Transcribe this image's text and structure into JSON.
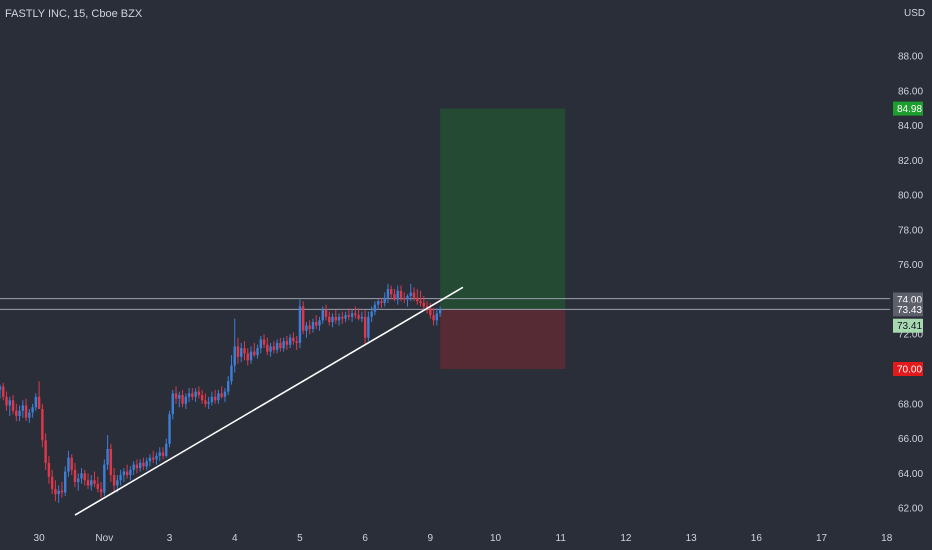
{
  "header": {
    "title": "FASTLY INC, 15, Cboe BZX",
    "currency": "USD"
  },
  "colors": {
    "background": "#2a2e39",
    "up_candle": "#3d7fd6",
    "down_candle": "#e0384a",
    "trendline": "#ffffff",
    "hline": "#9aa0ad",
    "target_zone": "#244a33",
    "stop_zone": "#562b33",
    "target_tag": "#1e9e2e",
    "stop_tag": "#e31a1c",
    "price_tag": "#a8d8b0",
    "level_tag": "#5d606b",
    "axis_text": "#d1d4dc"
  },
  "chart_data": {
    "type": "candlestick",
    "symbol": "FASTLY INC",
    "interval": "15",
    "exchange": "Cboe BZX",
    "currency": "USD",
    "x_ticks": [
      {
        "label": "30",
        "day": 0
      },
      {
        "label": "Nov",
        "day": 1
      },
      {
        "label": "3",
        "day": 2
      },
      {
        "label": "4",
        "day": 3
      },
      {
        "label": "5",
        "day": 4
      },
      {
        "label": "6",
        "day": 5
      },
      {
        "label": "9",
        "day": 6
      },
      {
        "label": "10",
        "day": 7
      },
      {
        "label": "11",
        "day": 8
      },
      {
        "label": "12",
        "day": 9
      },
      {
        "label": "13",
        "day": 10
      },
      {
        "label": "16",
        "day": 11
      },
      {
        "label": "17",
        "day": 12
      },
      {
        "label": "18",
        "day": 13
      }
    ],
    "y_ticks": [
      "62.00",
      "64.00",
      "66.00",
      "68.00",
      "70.00",
      "72.00",
      "74.00",
      "76.00",
      "78.00",
      "80.00",
      "82.00",
      "84.00",
      "86.00",
      "88.00"
    ],
    "ylim": [
      61.2,
      89.5
    ],
    "xlim": [
      -0.6,
      13.05
    ],
    "last_price": "73.41",
    "price_levels": [
      {
        "name": "target",
        "value": "84.98"
      },
      {
        "name": "entry",
        "value": "73.43"
      },
      {
        "name": "stop",
        "value": "70.00"
      },
      {
        "name": "resistance",
        "value": "74.00"
      }
    ],
    "horizontal_lines": [
      74.05,
      73.43
    ],
    "trendline": {
      "start": [
        0.55,
        61.6
      ],
      "end": [
        6.5,
        74.7
      ]
    },
    "long_position": {
      "day_start": 6.15,
      "day_end": 8.07,
      "entry": 73.43,
      "target": 84.98,
      "stop": 70.0
    },
    "candles": [
      [
        -0.6,
        68.8,
        69.1,
        68.3,
        69.0
      ],
      [
        -0.55,
        69.0,
        69.2,
        68.2,
        68.4
      ],
      [
        -0.5,
        68.4,
        68.7,
        67.6,
        67.9
      ],
      [
        -0.45,
        67.9,
        68.4,
        67.3,
        68.2
      ],
      [
        -0.4,
        68.2,
        68.5,
        67.4,
        67.6
      ],
      [
        -0.35,
        67.6,
        68.0,
        67.0,
        67.3
      ],
      [
        -0.3,
        67.3,
        67.9,
        67.0,
        67.6
      ],
      [
        -0.25,
        67.6,
        68.2,
        67.2,
        67.9
      ],
      [
        -0.2,
        67.9,
        68.3,
        67.0,
        67.2
      ],
      [
        -0.15,
        67.2,
        67.7,
        66.9,
        67.5
      ],
      [
        -0.1,
        67.5,
        68.0,
        67.2,
        67.8
      ],
      [
        -0.05,
        67.8,
        68.6,
        67.6,
        68.4
      ],
      [
        0.0,
        68.4,
        69.3,
        67.9,
        67.7
      ],
      [
        0.05,
        67.7,
        68.0,
        65.5,
        65.9
      ],
      [
        0.1,
        65.9,
        66.3,
        64.2,
        64.6
      ],
      [
        0.15,
        64.6,
        65.0,
        63.4,
        63.8
      ],
      [
        0.2,
        63.8,
        64.2,
        62.8,
        63.1
      ],
      [
        0.25,
        63.1,
        63.6,
        62.4,
        62.8
      ],
      [
        0.3,
        62.8,
        63.3,
        62.3,
        63.0
      ],
      [
        0.35,
        63.0,
        63.5,
        62.6,
        62.9
      ],
      [
        0.4,
        62.9,
        64.4,
        62.7,
        64.1
      ],
      [
        0.45,
        64.1,
        65.3,
        63.8,
        64.9
      ],
      [
        0.5,
        64.9,
        65.1,
        63.9,
        64.2
      ],
      [
        0.55,
        64.2,
        64.6,
        63.2,
        63.5
      ],
      [
        0.6,
        63.5,
        64.0,
        63.0,
        63.7
      ],
      [
        0.65,
        63.7,
        64.3,
        63.4,
        64.0
      ],
      [
        0.7,
        64.0,
        64.2,
        63.3,
        63.6
      ],
      [
        0.75,
        63.6,
        64.0,
        63.1,
        63.3
      ],
      [
        0.8,
        63.3,
        63.9,
        63.0,
        63.6
      ],
      [
        0.85,
        63.6,
        64.1,
        63.2,
        63.4
      ],
      [
        0.9,
        63.4,
        63.8,
        62.9,
        63.1
      ],
      [
        0.95,
        63.1,
        63.5,
        62.6,
        62.9
      ],
      [
        1.0,
        62.9,
        64.8,
        62.7,
        64.5
      ],
      [
        1.05,
        64.5,
        66.2,
        64.2,
        65.4
      ],
      [
        1.1,
        65.4,
        65.7,
        63.5,
        63.9
      ],
      [
        1.15,
        63.9,
        64.3,
        62.9,
        63.3
      ],
      [
        1.2,
        63.3,
        63.9,
        62.9,
        63.6
      ],
      [
        1.25,
        63.6,
        64.2,
        63.3,
        63.9
      ],
      [
        1.3,
        63.9,
        64.3,
        63.5,
        64.1
      ],
      [
        1.35,
        64.1,
        64.5,
        63.7,
        63.9
      ],
      [
        1.4,
        63.9,
        64.4,
        63.6,
        64.2
      ],
      [
        1.45,
        64.2,
        64.7,
        63.9,
        64.5
      ],
      [
        1.5,
        64.5,
        64.8,
        64.0,
        64.3
      ],
      [
        1.55,
        64.3,
        64.8,
        64.1,
        64.6
      ],
      [
        1.6,
        64.6,
        64.9,
        64.2,
        64.4
      ],
      [
        1.65,
        64.4,
        64.9,
        64.2,
        64.7
      ],
      [
        1.7,
        64.7,
        65.1,
        64.4,
        64.9
      ],
      [
        1.75,
        64.9,
        65.3,
        64.6,
        64.8
      ],
      [
        1.8,
        64.8,
        65.2,
        64.5,
        65.0
      ],
      [
        1.85,
        65.0,
        65.5,
        64.7,
        65.2
      ],
      [
        1.9,
        65.2,
        65.5,
        64.8,
        65.0
      ],
      [
        1.95,
        65.0,
        66.0,
        64.9,
        65.7
      ],
      [
        2.0,
        65.7,
        67.6,
        65.5,
        67.4
      ],
      [
        2.05,
        67.4,
        68.8,
        67.1,
        68.6
      ],
      [
        2.1,
        68.6,
        69.0,
        68.0,
        68.3
      ],
      [
        2.15,
        68.3,
        68.7,
        67.8,
        68.5
      ],
      [
        2.2,
        68.5,
        68.8,
        67.8,
        68.0
      ],
      [
        2.25,
        68.0,
        68.6,
        67.7,
        68.4
      ],
      [
        2.3,
        68.4,
        68.9,
        68.1,
        68.6
      ],
      [
        2.35,
        68.6,
        68.9,
        68.2,
        68.4
      ],
      [
        2.4,
        68.4,
        68.9,
        68.1,
        68.7
      ],
      [
        2.45,
        68.7,
        69.0,
        68.3,
        68.5
      ],
      [
        2.5,
        68.5,
        68.8,
        68.0,
        68.2
      ],
      [
        2.55,
        68.2,
        68.6,
        67.8,
        68.0
      ],
      [
        2.6,
        68.0,
        68.4,
        67.7,
        68.1
      ],
      [
        2.65,
        68.1,
        68.7,
        67.9,
        68.4
      ],
      [
        2.7,
        68.4,
        68.8,
        68.0,
        68.2
      ],
      [
        2.75,
        68.2,
        68.8,
        68.0,
        68.6
      ],
      [
        2.8,
        68.6,
        69.0,
        68.3,
        68.4
      ],
      [
        2.85,
        68.4,
        68.9,
        68.1,
        68.7
      ],
      [
        2.9,
        68.7,
        69.6,
        68.5,
        69.3
      ],
      [
        2.95,
        69.3,
        70.8,
        69.1,
        70.2
      ],
      [
        3.0,
        70.2,
        72.9,
        69.8,
        71.3
      ],
      [
        3.05,
        71.3,
        71.8,
        70.3,
        70.7
      ],
      [
        3.1,
        70.7,
        71.5,
        70.4,
        71.2
      ],
      [
        3.15,
        71.2,
        71.6,
        70.5,
        70.9
      ],
      [
        3.2,
        70.9,
        71.2,
        70.2,
        70.5
      ],
      [
        3.25,
        70.5,
        71.3,
        70.3,
        71.0
      ],
      [
        3.3,
        71.0,
        71.5,
        70.7,
        70.8
      ],
      [
        3.35,
        70.8,
        71.4,
        70.6,
        71.2
      ],
      [
        3.4,
        71.2,
        71.9,
        70.9,
        71.7
      ],
      [
        3.45,
        71.7,
        72.0,
        71.2,
        71.4
      ],
      [
        3.5,
        71.4,
        71.8,
        70.8,
        71.0
      ],
      [
        3.55,
        71.0,
        71.5,
        70.7,
        71.3
      ],
      [
        3.6,
        71.3,
        71.6,
        70.9,
        71.1
      ],
      [
        3.65,
        71.1,
        71.7,
        70.9,
        71.5
      ],
      [
        3.7,
        71.5,
        71.8,
        71.0,
        71.2
      ],
      [
        3.75,
        71.2,
        71.8,
        71.0,
        71.6
      ],
      [
        3.8,
        71.6,
        71.9,
        71.1,
        71.4
      ],
      [
        3.85,
        71.4,
        72.0,
        71.2,
        71.8
      ],
      [
        3.9,
        71.8,
        72.1,
        71.4,
        71.6
      ],
      [
        3.95,
        71.6,
        71.9,
        71.1,
        71.5
      ],
      [
        4.0,
        71.5,
        74.0,
        71.2,
        73.6
      ],
      [
        4.05,
        73.6,
        73.9,
        72.0,
        72.2
      ],
      [
        4.1,
        72.2,
        72.7,
        71.8,
        72.5
      ],
      [
        4.15,
        72.5,
        72.8,
        72.0,
        72.3
      ],
      [
        4.2,
        72.3,
        72.9,
        72.1,
        72.7
      ],
      [
        4.25,
        72.7,
        73.1,
        72.3,
        72.5
      ],
      [
        4.3,
        72.5,
        73.0,
        72.2,
        72.8
      ],
      [
        4.35,
        72.8,
        73.6,
        72.6,
        73.4
      ],
      [
        4.4,
        73.4,
        73.7,
        72.8,
        73.0
      ],
      [
        4.45,
        73.0,
        73.3,
        72.5,
        72.7
      ],
      [
        4.5,
        72.7,
        73.2,
        72.4,
        73.0
      ],
      [
        4.55,
        73.0,
        73.4,
        72.6,
        72.8
      ],
      [
        4.6,
        72.8,
        73.2,
        72.5,
        73.0
      ],
      [
        4.65,
        73.0,
        73.3,
        72.6,
        72.9
      ],
      [
        4.7,
        72.9,
        73.3,
        72.7,
        73.1
      ],
      [
        4.75,
        73.1,
        73.5,
        72.8,
        73.0
      ],
      [
        4.8,
        73.0,
        73.4,
        72.7,
        73.2
      ],
      [
        4.85,
        73.2,
        73.6,
        72.9,
        73.1
      ],
      [
        4.9,
        73.1,
        73.5,
        72.8,
        72.9
      ],
      [
        4.95,
        72.9,
        73.3,
        72.7,
        73.0
      ],
      [
        5.0,
        73.0,
        73.4,
        71.4,
        71.8
      ],
      [
        5.05,
        71.8,
        73.3,
        71.6,
        73.0
      ],
      [
        5.1,
        73.0,
        73.6,
        72.7,
        73.3
      ],
      [
        5.15,
        73.3,
        73.9,
        73.1,
        73.7
      ],
      [
        5.2,
        73.7,
        74.0,
        73.4,
        73.9
      ],
      [
        5.25,
        73.9,
        74.1,
        73.5,
        73.8
      ],
      [
        5.3,
        73.8,
        74.4,
        73.6,
        74.1
      ],
      [
        5.35,
        74.1,
        74.9,
        73.8,
        74.6
      ],
      [
        5.4,
        74.6,
        74.8,
        74.0,
        74.3
      ],
      [
        5.45,
        74.3,
        74.6,
        73.9,
        74.0
      ],
      [
        5.5,
        74.0,
        74.8,
        73.7,
        74.5
      ],
      [
        5.55,
        74.5,
        74.8,
        73.9,
        74.1
      ],
      [
        5.6,
        74.1,
        74.4,
        73.8,
        74.0
      ],
      [
        5.65,
        74.0,
        74.3,
        73.6,
        74.2
      ],
      [
        5.7,
        74.2,
        74.9,
        73.9,
        74.4
      ],
      [
        5.75,
        74.4,
        74.7,
        73.9,
        74.1
      ],
      [
        5.8,
        74.1,
        74.6,
        73.7,
        73.9
      ],
      [
        5.85,
        73.9,
        74.5,
        73.6,
        73.8
      ],
      [
        5.9,
        73.8,
        74.2,
        73.4,
        73.6
      ],
      [
        5.95,
        73.6,
        73.9,
        73.2,
        73.5
      ],
      [
        6.0,
        73.5,
        73.8,
        72.9,
        73.1
      ],
      [
        6.05,
        73.1,
        73.5,
        72.5,
        72.8
      ],
      [
        6.1,
        72.8,
        73.5,
        72.5,
        73.2
      ],
      [
        6.15,
        73.2,
        73.6,
        73.0,
        73.41
      ]
    ]
  }
}
